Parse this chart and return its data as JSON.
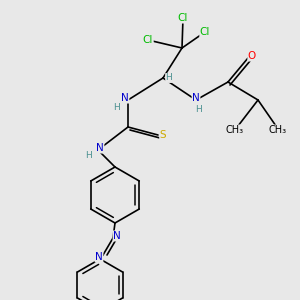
{
  "background_color": "#e8e8e8",
  "line_color": "#000000",
  "bond_lw": 1.2,
  "atom_colors": {
    "Cl": "#00bb00",
    "O": "#ff0000",
    "N": "#0000cc",
    "S": "#ccaa00",
    "H": "#4a9090",
    "C": "#000000"
  },
  "font_size": 7.5
}
